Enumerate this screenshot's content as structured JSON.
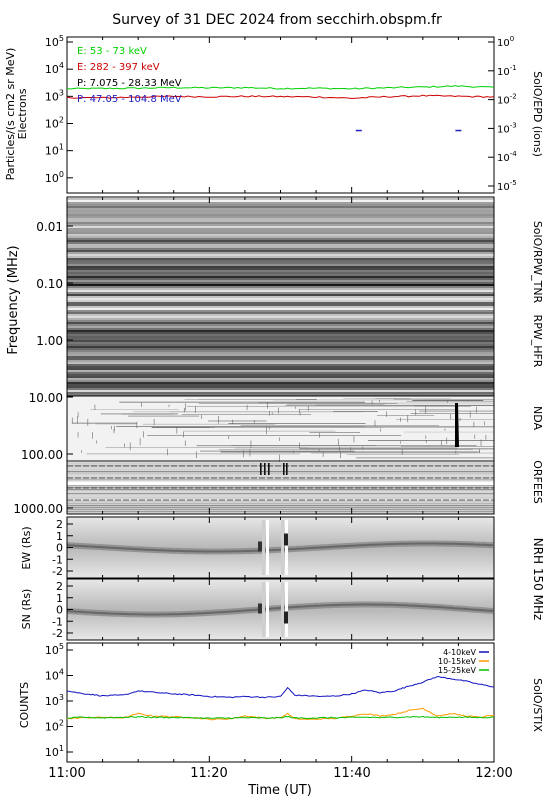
{
  "title": "Survey of 31 DEC 2024 from secchirh.obspm.fr",
  "xlabel": "Time (UT)",
  "x_ticks": [
    "11:00",
    "11:20",
    "11:40",
    "12:00"
  ],
  "panels": {
    "epd": {
      "ylabel_left": [
        "Particles/(s cm2 sr MeV)",
        "Electrons"
      ],
      "ylabel_right": "SolO/EPD (ions)",
      "left_ticks": [
        {
          "base": "10",
          "exp": "5"
        },
        {
          "base": "10",
          "exp": "4"
        },
        {
          "base": "10",
          "exp": "3"
        },
        {
          "base": "10",
          "exp": "2"
        },
        {
          "base": "10",
          "exp": "1"
        },
        {
          "base": "10",
          "exp": "0"
        }
      ],
      "right_ticks": [
        {
          "base": "10",
          "exp": "0"
        },
        {
          "base": "10",
          "exp": "-1"
        },
        {
          "base": "10",
          "exp": "-2"
        },
        {
          "base": "10",
          "exp": "-3"
        },
        {
          "base": "10",
          "exp": "-4"
        },
        {
          "base": "10",
          "exp": "-5"
        }
      ],
      "legend": [
        {
          "label": "E: 53 - 73 keV",
          "color": "#00d000"
        },
        {
          "label": "E: 282 - 397 keV",
          "color": "#cc0000"
        },
        {
          "label": "P: 7.075 - 28.33 MeV",
          "color": "#000000"
        },
        {
          "label": "P: 47.05 - 104.8 MeV",
          "color": "#2020c0"
        }
      ]
    },
    "radio": {
      "ylabel": "Frequency (MHz)",
      "ticks": [
        "0.01",
        "0.10",
        "1.00",
        "10.00",
        "100.00",
        "1000.00"
      ],
      "instrument_labels": [
        "SolO/RPW_TNR",
        "RPW_HFR",
        "NDA",
        "ORFEES"
      ]
    },
    "nrh": {
      "right_label": "NRH 150 MHz",
      "ew_label": "EW (Rs)",
      "sn_label": "SN (Rs)",
      "ticks": [
        "2",
        "1",
        "0",
        "-1",
        "-2"
      ]
    },
    "stix": {
      "ylabel": "COUNTS",
      "right_label": "SoIO/STIX",
      "ticks": [
        {
          "base": "10",
          "exp": "5"
        },
        {
          "base": "10",
          "exp": "4"
        },
        {
          "base": "10",
          "exp": "3"
        },
        {
          "base": "10",
          "exp": "2"
        },
        {
          "base": "10",
          "exp": "1"
        }
      ],
      "legend": [
        {
          "label": "4-10keV",
          "color": "#1010c0"
        },
        {
          "label": "10-15keV",
          "color": "#ff9900"
        },
        {
          "label": "15-25keV",
          "color": "#00c000"
        }
      ]
    }
  },
  "chart_data": [
    {
      "type": "line",
      "name": "SolO/EPD",
      "yscale": "log",
      "ylim": [
        0.5,
        100000
      ],
      "xlim": [
        "11:00",
        "12:00"
      ],
      "x": [
        "11:00",
        "11:05",
        "11:10",
        "11:15",
        "11:20",
        "11:25",
        "11:30",
        "11:35",
        "11:40",
        "11:45",
        "11:50",
        "11:55",
        "12:00"
      ],
      "series": [
        {
          "name": "E: 53 - 73 keV",
          "color": "#00d000",
          "values": [
            1900,
            1950,
            2000,
            2100,
            2050,
            2100,
            1950,
            2000,
            1900,
            2050,
            2200,
            2400,
            2100
          ]
        },
        {
          "name": "E: 282 - 397 keV",
          "color": "#cc0000",
          "values": [
            900,
            880,
            950,
            1000,
            960,
            1000,
            980,
            950,
            850,
            970,
            1050,
            1000,
            950
          ]
        }
      ],
      "markers": [
        {
          "name": "P: 47.05 - 104.8 MeV",
          "color": "#2020c0",
          "x": [
            "11:41",
            "11:55"
          ],
          "values": [
            55,
            55
          ]
        }
      ]
    },
    {
      "type": "line",
      "name": "SolO/STIX",
      "yscale": "log",
      "ylim": [
        8,
        130000
      ],
      "xlim": [
        "11:00",
        "12:00"
      ],
      "x": [
        "11:00",
        "11:02",
        "11:05",
        "11:08",
        "11:10",
        "11:12",
        "11:15",
        "11:18",
        "11:20",
        "11:23",
        "11:25",
        "11:28",
        "11:30",
        "11:31",
        "11:32",
        "11:34",
        "11:36",
        "11:38",
        "11:40",
        "11:42",
        "11:44",
        "11:46",
        "11:48",
        "11:50",
        "11:52",
        "11:54",
        "11:56",
        "11:58",
        "12:00"
      ],
      "series": [
        {
          "name": "4-10keV",
          "color": "#1010c0",
          "values": [
            2500,
            2000,
            1600,
            1700,
            2500,
            2200,
            1900,
            1700,
            1500,
            1400,
            1500,
            1400,
            1500,
            3300,
            1700,
            1600,
            1500,
            1600,
            1900,
            2700,
            2100,
            2500,
            3800,
            5500,
            9000,
            7500,
            6000,
            4500,
            3600
          ]
        },
        {
          "name": "10-15keV",
          "color": "#ff9900",
          "values": [
            200,
            220,
            230,
            220,
            320,
            260,
            240,
            220,
            190,
            200,
            260,
            210,
            220,
            320,
            200,
            190,
            200,
            210,
            260,
            320,
            260,
            300,
            420,
            520,
            260,
            320,
            260,
            230,
            280
          ]
        },
        {
          "name": "15-25keV",
          "color": "#00c000",
          "values": [
            210,
            230,
            220,
            230,
            240,
            230,
            225,
            220,
            210,
            215,
            220,
            215,
            220,
            245,
            215,
            215,
            220,
            220,
            225,
            230,
            225,
            230,
            240,
            240,
            225,
            235,
            230,
            225,
            230
          ]
        }
      ]
    }
  ]
}
